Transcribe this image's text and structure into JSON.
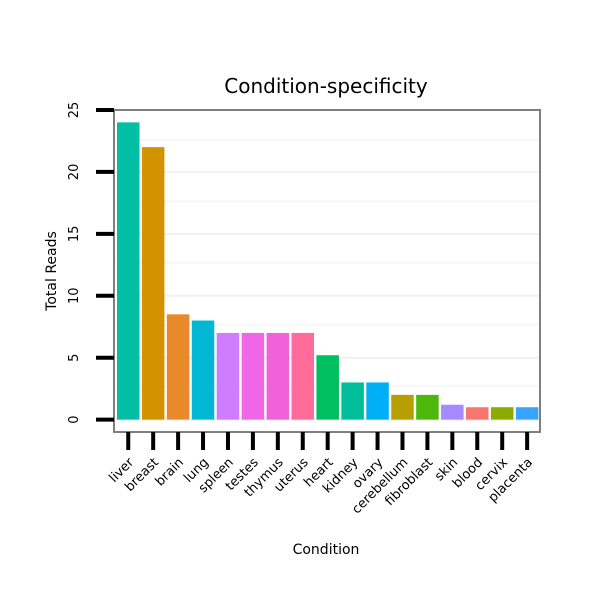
{
  "chart_data": {
    "type": "bar",
    "title": "Condition-specificity",
    "xlabel": "Condition",
    "ylabel": "Total Reads",
    "ylim": [
      -1,
      25
    ],
    "yticks": [
      0,
      5,
      10,
      15,
      20,
      25
    ],
    "ytick_labels": [
      "0",
      "5",
      "10",
      "15",
      "20",
      "25"
    ],
    "grid": true,
    "legend": "none",
    "categories": [
      "liver",
      "breast",
      "brain",
      "lung",
      "spleen",
      "testes",
      "thymus",
      "uterus",
      "heart",
      "kidney",
      "ovary",
      "cerebellum",
      "fibroblast",
      "skin",
      "blood",
      "cervix",
      "placenta"
    ],
    "values": [
      24,
      22,
      8.5,
      8,
      7,
      7,
      7,
      7,
      5.2,
      3,
      3,
      2,
      2,
      1.2,
      1,
      1,
      1
    ],
    "colors": [
      "#00BFA5",
      "#D39200",
      "#E98A2A",
      "#00B8D4",
      "#CF7CFF",
      "#EF67E6",
      "#F062D8",
      "#FF6C9B",
      "#00BF60",
      "#00BE9A",
      "#00B0F6",
      "#B79F00",
      "#4DB80B",
      "#A58AFF",
      "#F8766D",
      "#8CAB00",
      "#39A4FF"
    ]
  }
}
